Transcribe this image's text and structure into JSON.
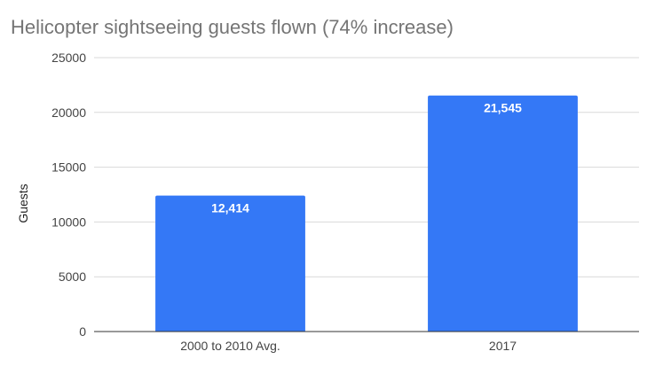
{
  "chart_data": {
    "type": "bar",
    "title": "Helicopter sightseeing guests flown (74% increase)",
    "xlabel": "",
    "ylabel": "Guests",
    "categories": [
      "2000 to 2010 Avg.",
      "2017"
    ],
    "values": [
      12414,
      21545
    ],
    "data_labels": [
      "12,414",
      "21,545"
    ],
    "ylim": [
      0,
      25000
    ],
    "yticks": [
      0,
      5000,
      10000,
      15000,
      20000,
      25000
    ],
    "ytick_labels": [
      "0",
      "5000",
      "10000",
      "15000",
      "20000",
      "25000"
    ],
    "grid": true,
    "legend": "none",
    "bar_color": "#3478f6"
  }
}
